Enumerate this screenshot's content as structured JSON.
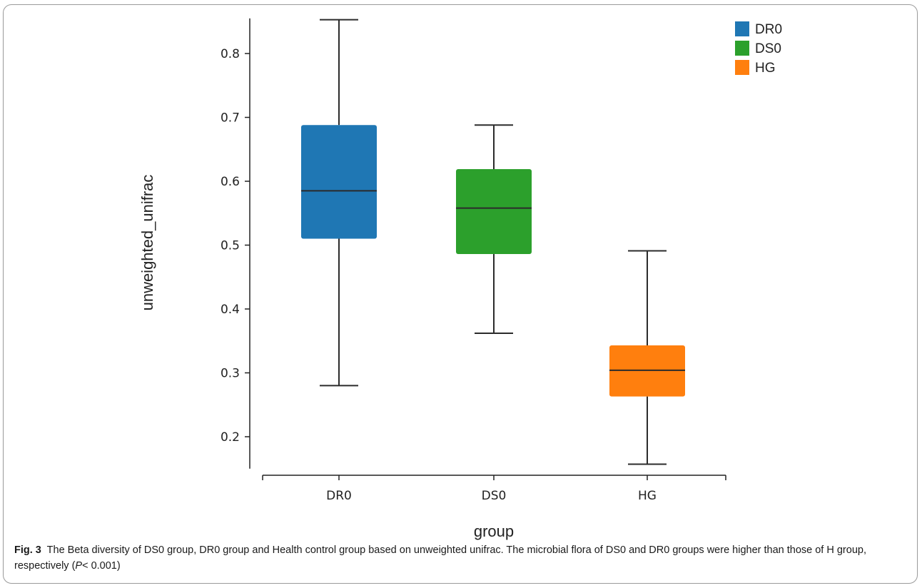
{
  "chart_data": {
    "type": "box",
    "xlabel": "group",
    "ylabel": "unweighted_unifrac",
    "ylim": [
      0.15,
      0.855
    ],
    "yticks": [
      0.2,
      0.3,
      0.4,
      0.5,
      0.6,
      0.7,
      0.8
    ],
    "ytick_labels": [
      "0.2",
      "0.3",
      "0.4",
      "0.5",
      "0.6",
      "0.7",
      "0.8"
    ],
    "categories": [
      "DR0",
      "DS0",
      "HG"
    ],
    "series": [
      {
        "name": "DR0",
        "color": "#1f77b4",
        "min": 0.28,
        "q1": 0.51,
        "median": 0.585,
        "q3": 0.688,
        "max": 0.853
      },
      {
        "name": "DS0",
        "color": "#2ca02c",
        "min": 0.362,
        "q1": 0.486,
        "median": 0.558,
        "q3": 0.619,
        "max": 0.688
      },
      {
        "name": "HG",
        "color": "#ff7f0e",
        "min": 0.157,
        "q1": 0.263,
        "median": 0.304,
        "q3": 0.343,
        "max": 0.491
      }
    ],
    "legend": {
      "position": "top-right",
      "entries": [
        "DR0",
        "DS0",
        "HG"
      ]
    }
  },
  "caption": {
    "label": "Fig. 3",
    "text_before_p": "The Beta diversity of DS0 group, DR0 group and Health control group based on unweighted unifrac. The microbial flora of DS0 and DR0 groups were higher than those of H group, respectively (",
    "p_symbol": "P",
    "text_after_p": "< 0.001)"
  }
}
